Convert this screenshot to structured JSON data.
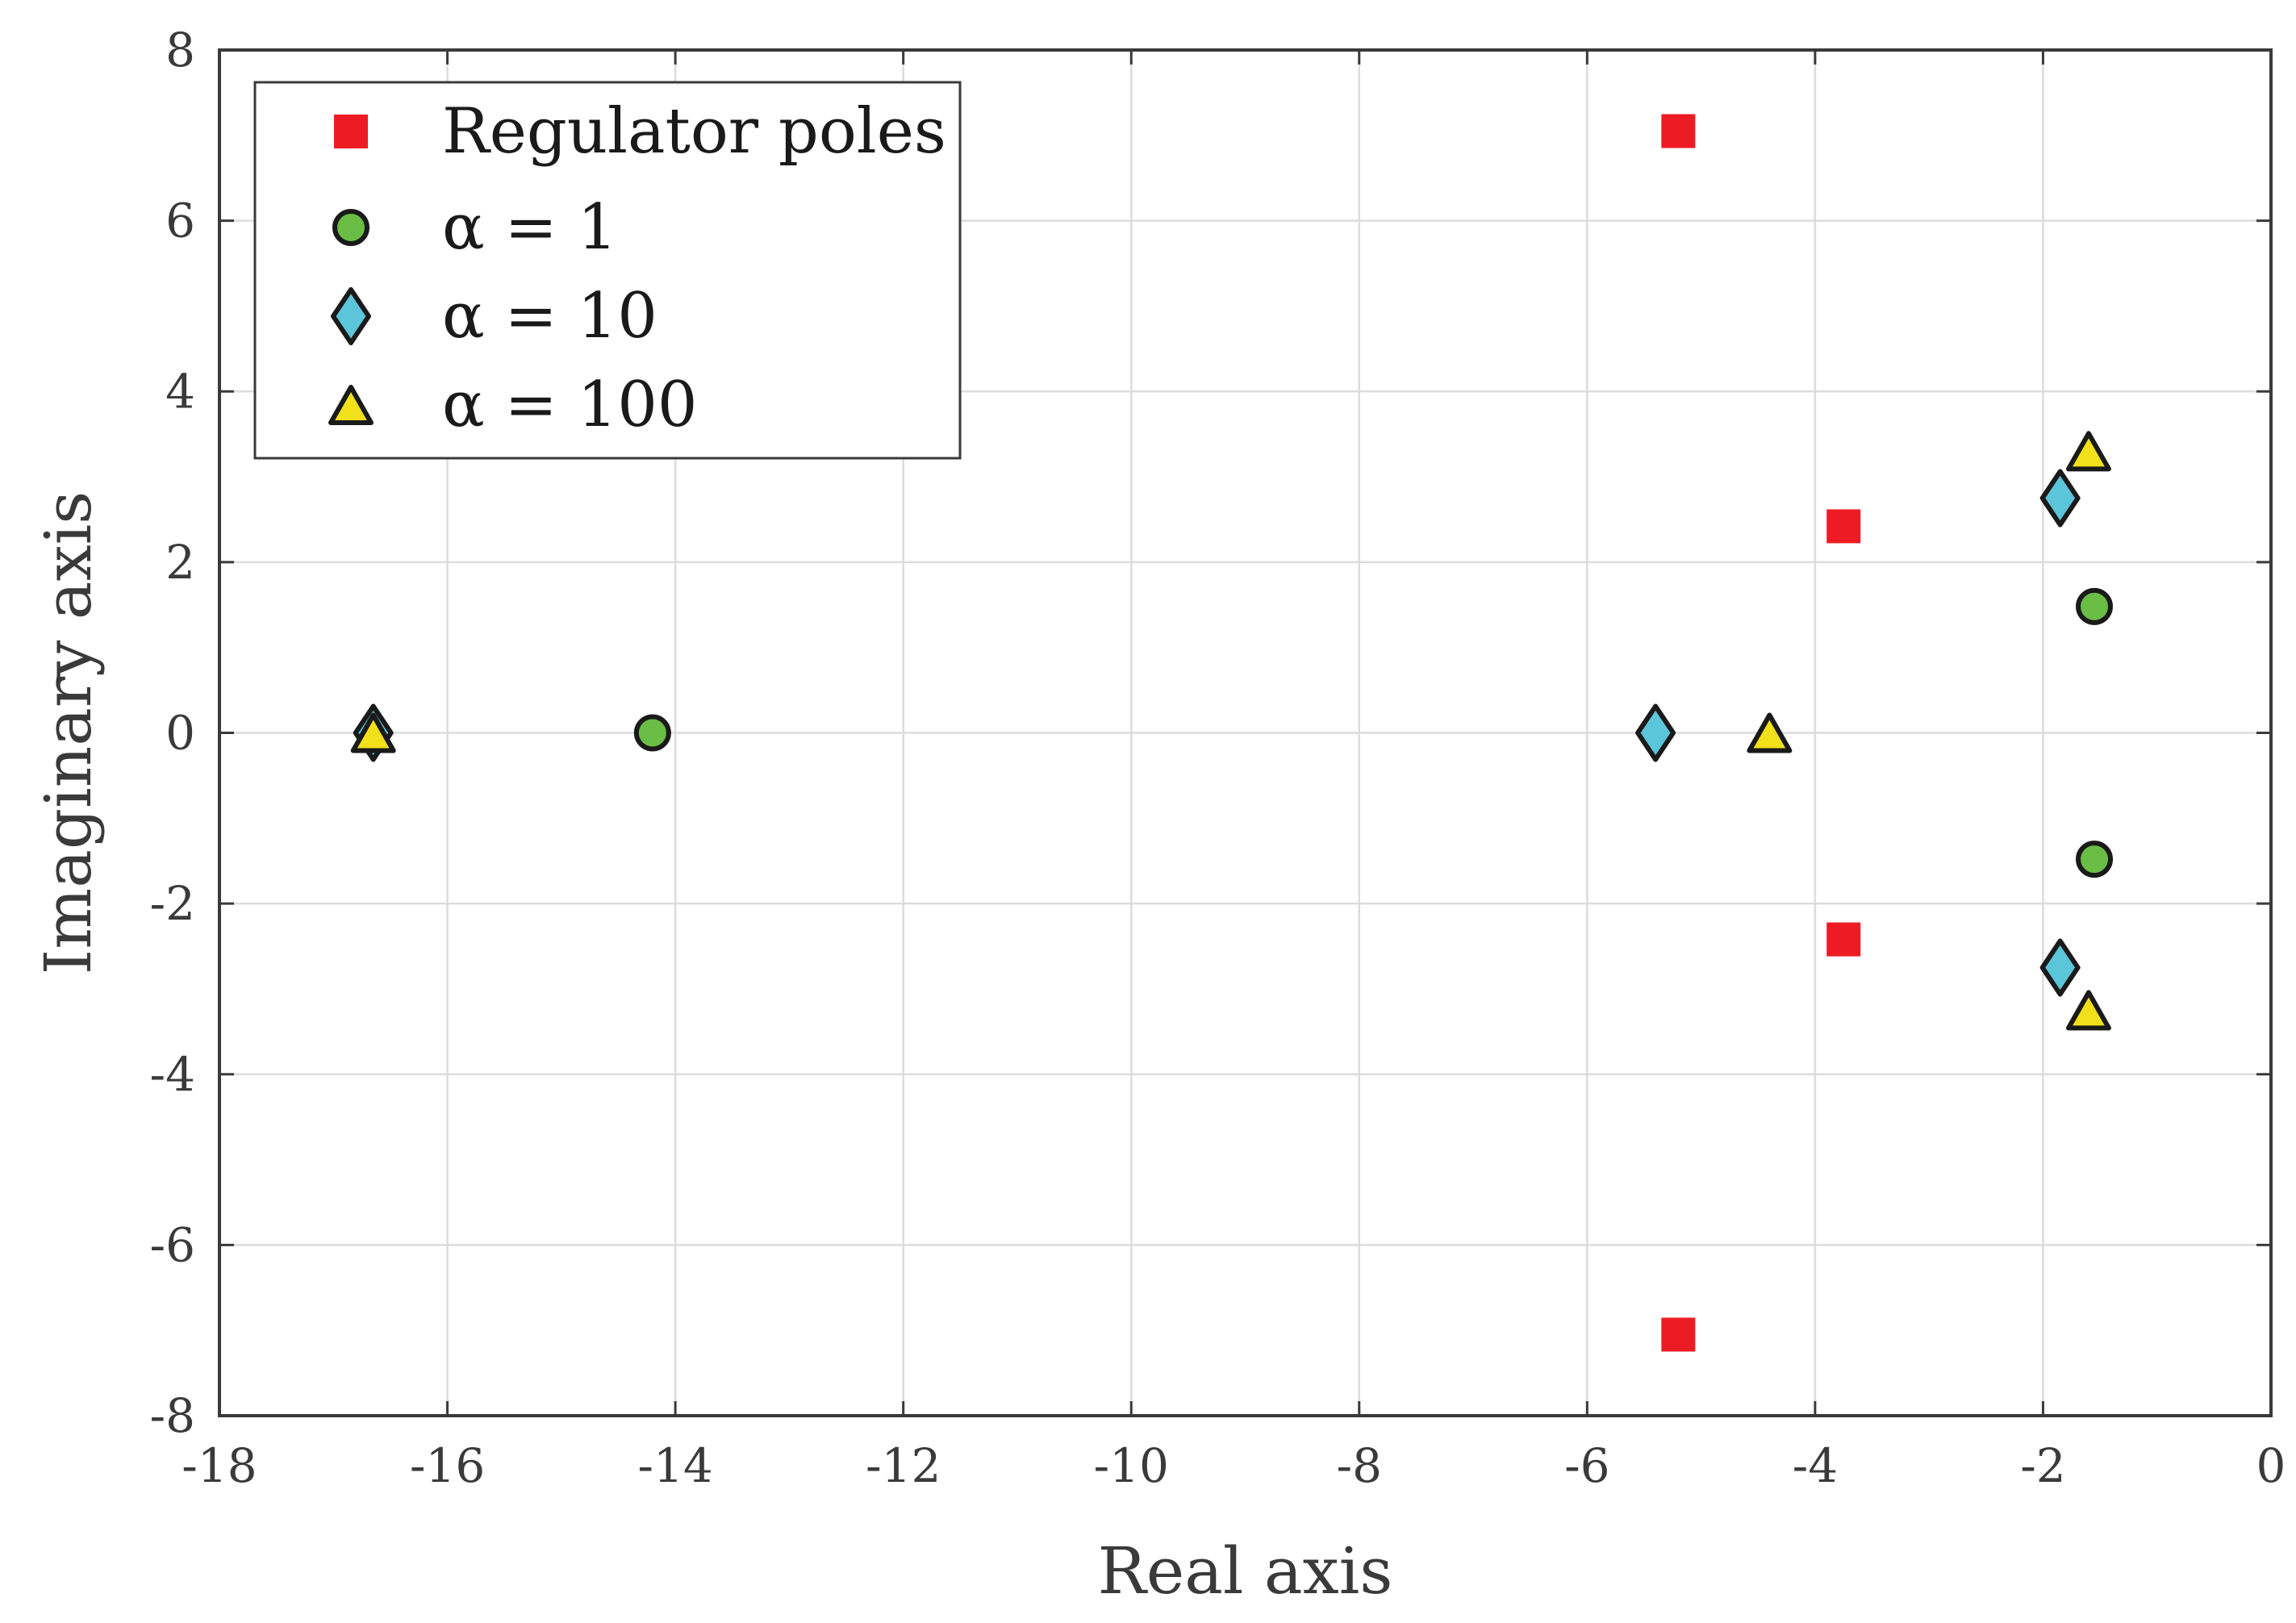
{
  "chart_data": {
    "type": "scatter",
    "title": "",
    "xlabel": "Real axis",
    "ylabel": "Imaginary axis",
    "xlim": [
      -18,
      0
    ],
    "ylim": [
      -8,
      8
    ],
    "xticks": [
      -18,
      -16,
      -14,
      -12,
      -10,
      -8,
      -6,
      -4,
      -2,
      0
    ],
    "yticks": [
      -8,
      -6,
      -4,
      -2,
      0,
      2,
      4,
      6,
      8
    ],
    "grid": true,
    "legend_position": "top-left",
    "series": [
      {
        "name": "Regulator poles",
        "marker": "square",
        "color": "#ed1c24",
        "points": [
          [
            -5.2,
            7.05
          ],
          [
            -5.2,
            -7.05
          ],
          [
            -3.75,
            2.42
          ],
          [
            -3.75,
            -2.42
          ]
        ]
      },
      {
        "name": "α = 1",
        "marker": "circle",
        "color": "#6abd45",
        "points": [
          [
            -14.2,
            0.0
          ],
          [
            -1.55,
            1.48
          ],
          [
            -1.55,
            -1.48
          ]
        ]
      },
      {
        "name": "α = 10",
        "marker": "diamond",
        "color": "#5bc5d9",
        "points": [
          [
            -16.65,
            0.0
          ],
          [
            -5.4,
            0.0
          ],
          [
            -1.85,
            2.75
          ],
          [
            -1.85,
            -2.75
          ]
        ]
      },
      {
        "name": "α = 100",
        "marker": "triangle",
        "color": "#f2e01a",
        "points": [
          [
            -16.65,
            0.0
          ],
          [
            -4.4,
            0.0
          ],
          [
            -1.6,
            3.3
          ],
          [
            -1.6,
            -3.25
          ]
        ]
      }
    ]
  }
}
